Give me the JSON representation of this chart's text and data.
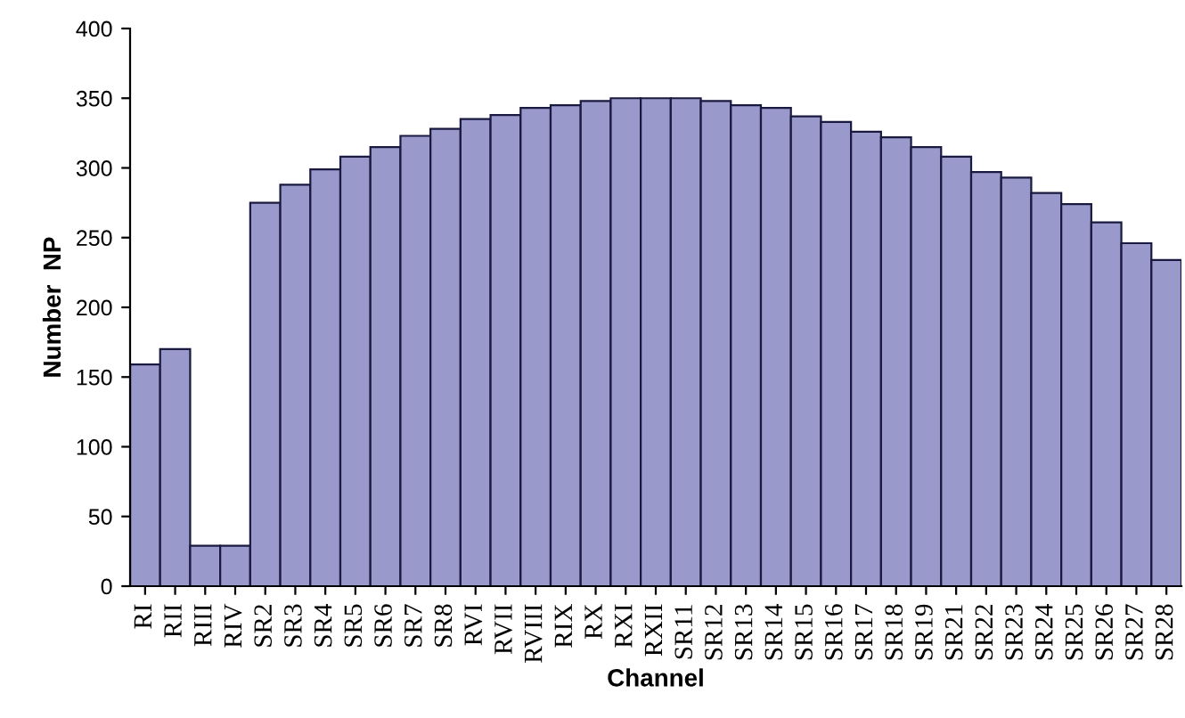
{
  "chart_data": {
    "type": "bar",
    "xlabel": "Channel",
    "ylabel": "Number  NP",
    "categories": [
      "RI",
      "RII",
      "RIII",
      "RIV",
      "SR2",
      "SR3",
      "SR4",
      "SR5",
      "SR6",
      "SR7",
      "SR8",
      "RVI",
      "RVII",
      "RVIII",
      "RIX",
      "RX",
      "RXI",
      "RXII",
      "SR11",
      "SR12",
      "SR13",
      "SR14",
      "SR15",
      "SR16",
      "SR17",
      "SR18",
      "SR19",
      "SR21",
      "SR22",
      "SR23",
      "SR24",
      "SR25",
      "SR26",
      "SR27",
      "SR28"
    ],
    "values": [
      159,
      170,
      29,
      29,
      275,
      288,
      299,
      308,
      315,
      323,
      328,
      335,
      338,
      343,
      345,
      348,
      350,
      350,
      350,
      348,
      345,
      343,
      337,
      333,
      326,
      322,
      315,
      308,
      297,
      293,
      282,
      274,
      261,
      246,
      234
    ],
    "color": "#9999cc",
    "ylim": [
      0,
      400
    ],
    "yticks": [
      0,
      50,
      100,
      150,
      200,
      250,
      300,
      350,
      400
    ],
    "grid": false,
    "legend": false
  }
}
